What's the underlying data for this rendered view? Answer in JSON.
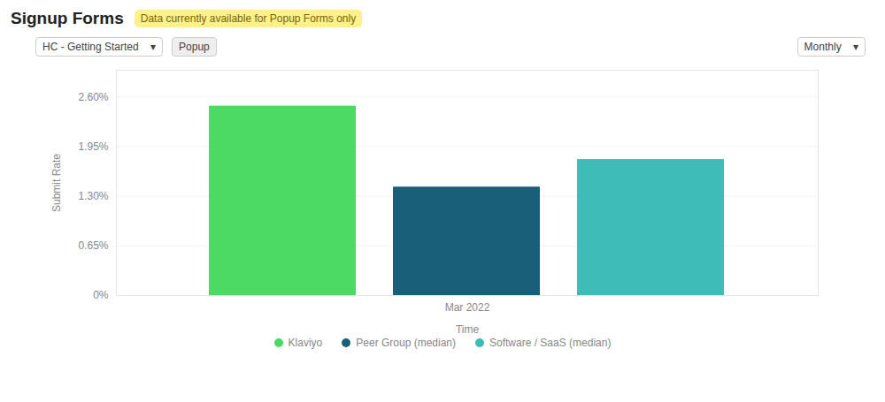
{
  "chart_data": {
    "type": "bar",
    "title": "Signup Forms",
    "subtitle": "Data currently available for Popup Forms only",
    "annotations": [
      "HC - Getting Started    ▾",
      "Popup",
      "Monthly    ▾"
    ],
    "xlabel": "Time",
    "ylabel": "Submit Rate",
    "categories": [
      "Mar 2022"
    ],
    "series": [
      {
        "name": "Klaviyo",
        "color": "#4cd964",
        "values": [
          0.0248
        ]
      },
      {
        "name": "Peer Group (median)",
        "color": "#1a5f7a",
        "values": [
          0.0142
        ]
      },
      {
        "name": "Software / SaaS (median)",
        "color": "#3dbcb8",
        "values": [
          0.0178
        ]
      }
    ],
    "ylim": [
      0,
      0.0295
    ],
    "yticks": [
      {
        "value": 0.0,
        "label": "0%"
      },
      {
        "value": 0.0065,
        "label": "0.65%"
      },
      {
        "value": 0.013,
        "label": "1.30%"
      },
      {
        "value": 0.0195,
        "label": "1.95%"
      },
      {
        "value": 0.026,
        "label": "2.60%"
      }
    ],
    "grid": true,
    "legend": "bottom"
  }
}
